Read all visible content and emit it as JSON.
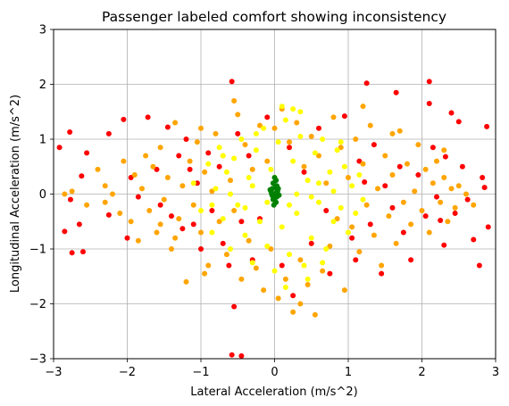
{
  "chart_data": {
    "type": "scatter",
    "title": "Passenger labeled comfort showing inconsistency",
    "xlabel": "Lateral Acceleration (m/s^2)",
    "ylabel": "Longitudinal Acceleration (m/s^2)",
    "xlim": [
      -3,
      3
    ],
    "ylim": [
      -3,
      3
    ],
    "xticks": [
      -3,
      -2,
      -1,
      0,
      1,
      2,
      3
    ],
    "yticks": [
      -3,
      -2,
      -1,
      0,
      1,
      2,
      3
    ],
    "xtick_labels": [
      "−3",
      "−2",
      "−1",
      "0",
      "1",
      "2",
      "3"
    ],
    "ytick_labels": [
      "−3",
      "−2",
      "−1",
      "0",
      "1",
      "2",
      "3"
    ],
    "grid": true,
    "legend": "none",
    "series": [
      {
        "color": "#ff0000",
        "points": [
          [
            -2.92,
            0.85
          ],
          [
            -2.85,
            -0.68
          ],
          [
            -2.78,
            1.13
          ],
          [
            -2.77,
            -0.1
          ],
          [
            -2.75,
            -1.07
          ],
          [
            -2.62,
            0.33
          ],
          [
            -2.6,
            -1.05
          ],
          [
            -2.55,
            0.75
          ],
          [
            -2.25,
            1.1
          ],
          [
            -2.25,
            -0.38
          ],
          [
            -2.05,
            1.36
          ],
          [
            -2.0,
            -0.8
          ],
          [
            -1.95,
            0.3
          ],
          [
            -1.72,
            1.4
          ],
          [
            -1.6,
            0.45
          ],
          [
            -1.55,
            -0.2
          ],
          [
            -1.45,
            1.22
          ],
          [
            -1.4,
            -0.4
          ],
          [
            -1.3,
            0.7
          ],
          [
            -1.25,
            -0.63
          ],
          [
            -1.2,
            1.0
          ],
          [
            -1.15,
            0.45
          ],
          [
            -1.1,
            -0.55
          ],
          [
            -1.05,
            0.2
          ],
          [
            -1.0,
            -1.0
          ],
          [
            -0.9,
            0.75
          ],
          [
            -0.85,
            -0.3
          ],
          [
            -0.75,
            0.5
          ],
          [
            -0.7,
            -0.9
          ],
          [
            -0.62,
            -1.3
          ],
          [
            -0.58,
            2.05
          ],
          [
            -0.55,
            -2.05
          ],
          [
            -0.58,
            -2.93
          ],
          [
            -0.45,
            -2.95
          ],
          [
            -0.5,
            1.1
          ],
          [
            -0.45,
            -0.5
          ],
          [
            -0.35,
            0.7
          ],
          [
            -0.3,
            -1.2
          ],
          [
            -0.2,
            -0.45
          ],
          [
            -0.1,
            1.4
          ],
          [
            0.1,
            -1.3
          ],
          [
            0.2,
            0.85
          ],
          [
            0.25,
            -1.85
          ],
          [
            0.4,
            0.4
          ],
          [
            0.5,
            -0.9
          ],
          [
            0.6,
            1.2
          ],
          [
            0.7,
            -0.3
          ],
          [
            0.95,
            1.42
          ],
          [
            1.05,
            -0.8
          ],
          [
            1.1,
            -1.2
          ],
          [
            1.15,
            0.6
          ],
          [
            1.22,
            0.22
          ],
          [
            1.25,
            2.02
          ],
          [
            1.3,
            -0.55
          ],
          [
            1.35,
            0.9
          ],
          [
            1.45,
            -1.45
          ],
          [
            1.5,
            0.15
          ],
          [
            1.6,
            -0.25
          ],
          [
            1.65,
            1.85
          ],
          [
            1.7,
            0.5
          ],
          [
            1.75,
            -0.7
          ],
          [
            1.85,
            -1.2
          ],
          [
            1.95,
            0.35
          ],
          [
            2.05,
            -0.4
          ],
          [
            2.1,
            2.05
          ],
          [
            2.1,
            1.65
          ],
          [
            2.15,
            0.85
          ],
          [
            2.2,
            -0.05
          ],
          [
            2.25,
            -0.48
          ],
          [
            2.3,
            -0.93
          ],
          [
            2.32,
            0.68
          ],
          [
            2.4,
            1.48
          ],
          [
            2.45,
            -0.35
          ],
          [
            2.5,
            1.32
          ],
          [
            2.55,
            0.5
          ],
          [
            2.62,
            -0.1
          ],
          [
            2.7,
            -0.83
          ],
          [
            2.78,
            -1.3
          ],
          [
            2.82,
            0.3
          ],
          [
            2.88,
            1.23
          ],
          [
            2.9,
            -0.6
          ],
          [
            2.85,
            0.12
          ],
          [
            -2.65,
            -0.55
          ],
          [
            -1.85,
            -0.05
          ],
          [
            0.75,
            -1.45
          ]
        ]
      },
      {
        "color": "#ffa500",
        "points": [
          [
            -2.85,
            0.0
          ],
          [
            -2.75,
            0.05
          ],
          [
            -2.55,
            -0.2
          ],
          [
            -2.3,
            0.15
          ],
          [
            -2.2,
            0.0
          ],
          [
            -2.1,
            -0.35
          ],
          [
            -2.05,
            0.6
          ],
          [
            -1.95,
            -0.5
          ],
          [
            -1.9,
            0.35
          ],
          [
            -1.85,
            -0.85
          ],
          [
            -1.8,
            0.1
          ],
          [
            -1.7,
            -0.3
          ],
          [
            -1.65,
            0.5
          ],
          [
            -1.6,
            -0.7
          ],
          [
            -1.55,
            0.85
          ],
          [
            -1.5,
            -0.1
          ],
          [
            -1.45,
            0.3
          ],
          [
            -1.4,
            -1.0
          ],
          [
            -1.35,
            1.3
          ],
          [
            -1.3,
            -0.45
          ],
          [
            -1.25,
            0.15
          ],
          [
            -1.2,
            -1.6
          ],
          [
            -1.15,
            0.6
          ],
          [
            -1.1,
            -0.2
          ],
          [
            -1.05,
            0.95
          ],
          [
            -1.0,
            -0.7
          ],
          [
            -0.95,
            0.4
          ],
          [
            -0.9,
            -1.3
          ],
          [
            -0.85,
            0.05
          ],
          [
            -0.8,
            1.1
          ],
          [
            -0.75,
            -0.5
          ],
          [
            -0.7,
            0.7
          ],
          [
            -0.65,
            -1.1
          ],
          [
            -0.6,
            0.25
          ],
          [
            -0.55,
            -0.3
          ],
          [
            -0.5,
            1.45
          ],
          [
            -0.45,
            -1.55
          ],
          [
            -0.4,
            0.9
          ],
          [
            -0.35,
            -0.85
          ],
          [
            -0.3,
            0.45
          ],
          [
            -0.25,
            -1.35
          ],
          [
            -0.2,
            1.25
          ],
          [
            -0.15,
            -1.75
          ],
          [
            -0.1,
            0.6
          ],
          [
            -0.05,
            -1.0
          ],
          [
            0.0,
            1.2
          ],
          [
            0.05,
            -1.9
          ],
          [
            0.1,
            1.55
          ],
          [
            0.15,
            -1.55
          ],
          [
            0.2,
            0.95
          ],
          [
            0.25,
            -2.15
          ],
          [
            0.3,
            1.3
          ],
          [
            0.35,
            -1.2
          ],
          [
            0.4,
            0.5
          ],
          [
            0.45,
            -1.65
          ],
          [
            0.5,
            1.05
          ],
          [
            0.55,
            -2.2
          ],
          [
            0.6,
            0.7
          ],
          [
            0.65,
            -1.4
          ],
          [
            0.7,
            0.2
          ],
          [
            0.75,
            -0.95
          ],
          [
            0.8,
            1.4
          ],
          [
            0.85,
            -0.45
          ],
          [
            0.9,
            0.85
          ],
          [
            0.95,
            -1.75
          ],
          [
            1.0,
            0.3
          ],
          [
            1.05,
            -0.6
          ],
          [
            1.1,
            1.0
          ],
          [
            1.15,
            -1.05
          ],
          [
            1.2,
            0.55
          ],
          [
            1.25,
            -0.2
          ],
          [
            1.3,
            1.25
          ],
          [
            1.35,
            -0.75
          ],
          [
            1.4,
            0.1
          ],
          [
            1.45,
            -1.3
          ],
          [
            1.5,
            0.7
          ],
          [
            1.55,
            -0.4
          ],
          [
            1.6,
            0.35
          ],
          [
            1.65,
            -0.9
          ],
          [
            1.7,
            1.15
          ],
          [
            1.75,
            -0.15
          ],
          [
            1.8,
            0.55
          ],
          [
            1.85,
            -0.55
          ],
          [
            1.9,
            0.05
          ],
          [
            1.95,
            0.9
          ],
          [
            2.0,
            -0.3
          ],
          [
            2.05,
            0.45
          ],
          [
            2.1,
            -0.7
          ],
          [
            2.15,
            0.2
          ],
          [
            2.2,
            0.6
          ],
          [
            2.25,
            -0.15
          ],
          [
            2.3,
            0.3
          ],
          [
            2.35,
            -0.5
          ],
          [
            2.4,
            0.1
          ],
          [
            2.45,
            -0.25
          ],
          [
            2.5,
            0.15
          ],
          [
            2.6,
            0.0
          ],
          [
            2.7,
            -0.2
          ],
          [
            -2.4,
            0.45
          ],
          [
            -2.3,
            -0.15
          ],
          [
            -1.75,
            0.7
          ],
          [
            -1.35,
            -0.8
          ],
          [
            -0.95,
            -1.45
          ],
          [
            -0.55,
            1.7
          ],
          [
            0.35,
            -2.0
          ],
          [
            1.2,
            1.6
          ],
          [
            1.6,
            1.1
          ],
          [
            -1.55,
            -0.55
          ],
          [
            -1.0,
            1.2
          ],
          [
            2.3,
            0.8
          ]
        ]
      },
      {
        "color": "#ffff00",
        "points": [
          [
            -1.1,
            0.2
          ],
          [
            -1.0,
            -0.3
          ],
          [
            -0.9,
            0.55
          ],
          [
            -0.85,
            -0.7
          ],
          [
            -0.8,
            0.1
          ],
          [
            -0.75,
            0.85
          ],
          [
            -0.7,
            -0.45
          ],
          [
            -0.65,
            0.4
          ],
          [
            -0.6,
            -1.0
          ],
          [
            -0.55,
            0.65
          ],
          [
            -0.5,
            -0.2
          ],
          [
            -0.45,
            1.0
          ],
          [
            -0.4,
            -0.75
          ],
          [
            -0.35,
            0.3
          ],
          [
            -0.3,
            -1.25
          ],
          [
            -0.25,
            0.8
          ],
          [
            -0.2,
            -0.5
          ],
          [
            -0.15,
            1.2
          ],
          [
            -0.1,
            -0.95
          ],
          [
            -0.05,
            0.45
          ],
          [
            0.0,
            -1.4
          ],
          [
            0.05,
            0.95
          ],
          [
            0.1,
            -0.6
          ],
          [
            0.15,
            1.35
          ],
          [
            0.2,
            -1.1
          ],
          [
            0.25,
            0.6
          ],
          [
            0.3,
            -0.35
          ],
          [
            0.35,
            1.05
          ],
          [
            0.4,
            -1.3
          ],
          [
            0.45,
            0.25
          ],
          [
            0.5,
            -0.8
          ],
          [
            0.55,
            0.75
          ],
          [
            0.6,
            -0.15
          ],
          [
            0.65,
            1.0
          ],
          [
            0.7,
            -1.0
          ],
          [
            0.75,
            0.4
          ],
          [
            0.8,
            -0.5
          ],
          [
            0.85,
            0.8
          ],
          [
            0.9,
            -0.25
          ],
          [
            0.95,
            0.5
          ],
          [
            1.0,
            -0.7
          ],
          [
            1.05,
            0.15
          ],
          [
            1.1,
            -0.35
          ],
          [
            1.15,
            0.35
          ],
          [
            1.2,
            -0.1
          ],
          [
            -0.6,
            0.0
          ],
          [
            -0.3,
            0.15
          ],
          [
            0.0,
            0.3
          ],
          [
            0.3,
            0.0
          ],
          [
            0.6,
            0.2
          ],
          [
            -0.4,
            -0.25
          ],
          [
            -0.1,
            -0.15
          ],
          [
            0.2,
            -0.2
          ],
          [
            0.5,
            -0.05
          ],
          [
            0.8,
            0.05
          ],
          [
            0.25,
            1.55
          ],
          [
            0.1,
            1.6
          ],
          [
            0.35,
            1.5
          ],
          [
            0.45,
            -1.55
          ],
          [
            0.15,
            -1.7
          ],
          [
            -0.25,
            1.1
          ],
          [
            0.65,
            -1.25
          ],
          [
            -0.7,
            0.7
          ],
          [
            0.9,
            0.95
          ],
          [
            -0.85,
            -0.2
          ]
        ]
      },
      {
        "color": "#008000",
        "points": [
          [
            0.0,
            0.3
          ],
          [
            0.02,
            0.25
          ],
          [
            -0.02,
            0.2
          ],
          [
            0.03,
            0.15
          ],
          [
            -0.03,
            0.1
          ],
          [
            0.04,
            0.05
          ],
          [
            -0.04,
            0.0
          ],
          [
            0.03,
            -0.05
          ],
          [
            -0.02,
            -0.1
          ],
          [
            0.02,
            -0.15
          ],
          [
            -0.01,
            -0.2
          ],
          [
            0.0,
            0.0
          ],
          [
            0.05,
            0.1
          ],
          [
            -0.05,
            0.05
          ],
          [
            0.01,
            0.12
          ],
          [
            0.06,
            -0.02
          ],
          [
            -0.06,
            0.08
          ],
          [
            0.0,
            -0.08
          ],
          [
            0.02,
            0.02
          ],
          [
            -0.03,
            -0.03
          ]
        ]
      }
    ]
  }
}
